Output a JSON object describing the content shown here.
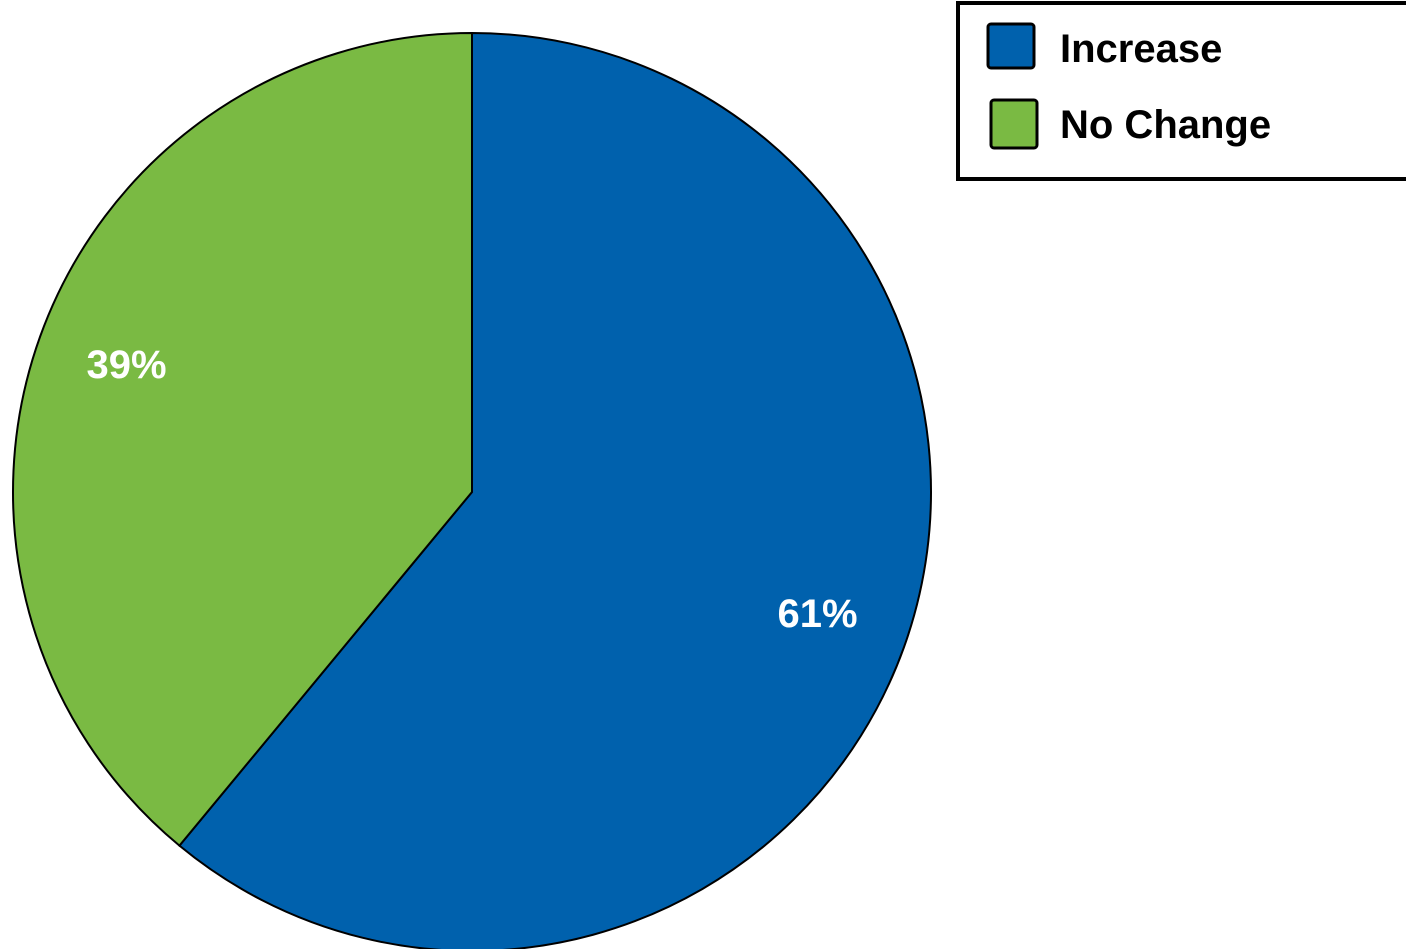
{
  "chart_data": {
    "type": "pie",
    "title": "",
    "legend_position": "top-right",
    "slices": [
      {
        "label": "Increase",
        "value": 61,
        "value_label": "61%",
        "color": "#0061ad"
      },
      {
        "label": "No Change",
        "value": 39,
        "value_label": "39%",
        "color": "#7aba43"
      }
    ]
  }
}
